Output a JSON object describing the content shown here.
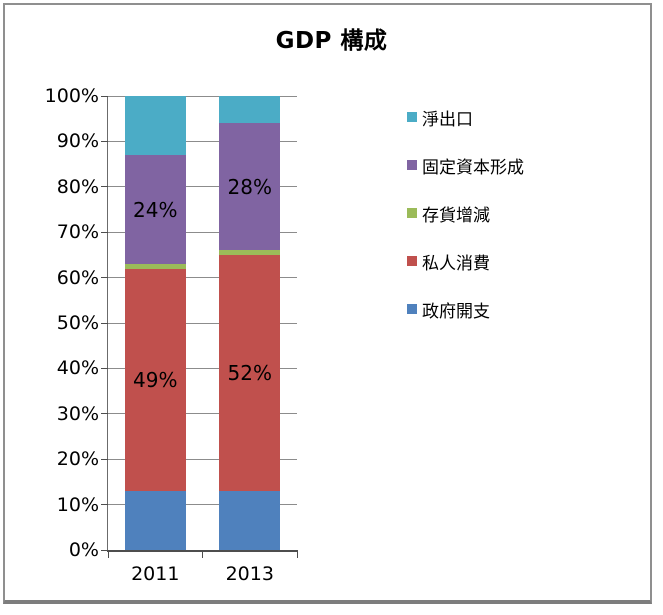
{
  "chart_data": {
    "type": "bar",
    "stacked": true,
    "percent_stacked": true,
    "title": "GDP 構成",
    "categories": [
      "2011",
      "2013"
    ],
    "series": [
      {
        "name": "政府開支",
        "color": "#4F81BD",
        "values": [
          13,
          13
        ]
      },
      {
        "name": "私人消費",
        "color": "#C0504D",
        "values": [
          49,
          52
        ],
        "labels": [
          "49%",
          "52%"
        ]
      },
      {
        "name": "存貨增減",
        "color": "#9BBB59",
        "values": [
          1,
          1
        ]
      },
      {
        "name": "固定資本形成",
        "color": "#8064A2",
        "values": [
          24,
          28
        ],
        "labels": [
          "24%",
          "28%"
        ]
      },
      {
        "name": "淨出口",
        "color": "#4BACC6",
        "values": [
          13,
          6
        ]
      }
    ],
    "y_axis": {
      "min": 0,
      "max": 100,
      "tick_step": 10,
      "tick_labels": [
        "0%",
        "10%",
        "20%",
        "30%",
        "40%",
        "50%",
        "60%",
        "70%",
        "80%",
        "90%",
        "100%"
      ],
      "grid": true
    },
    "legend": {
      "position": "right",
      "items": [
        {
          "label": "淨出口",
          "color": "#4BACC6"
        },
        {
          "label": "固定資本形成",
          "color": "#8064A2"
        },
        {
          "label": "存貨增減",
          "color": "#9BBB59"
        },
        {
          "label": "私人消費",
          "color": "#C0504D"
        },
        {
          "label": "政府開支",
          "color": "#4F81BD"
        }
      ]
    }
  },
  "colors": {
    "gridline": "#8C8C8C",
    "axis": "#4D4D4D",
    "frame_border": "#8F8F8F",
    "text": "#000000",
    "background": "#FFFFFF"
  }
}
